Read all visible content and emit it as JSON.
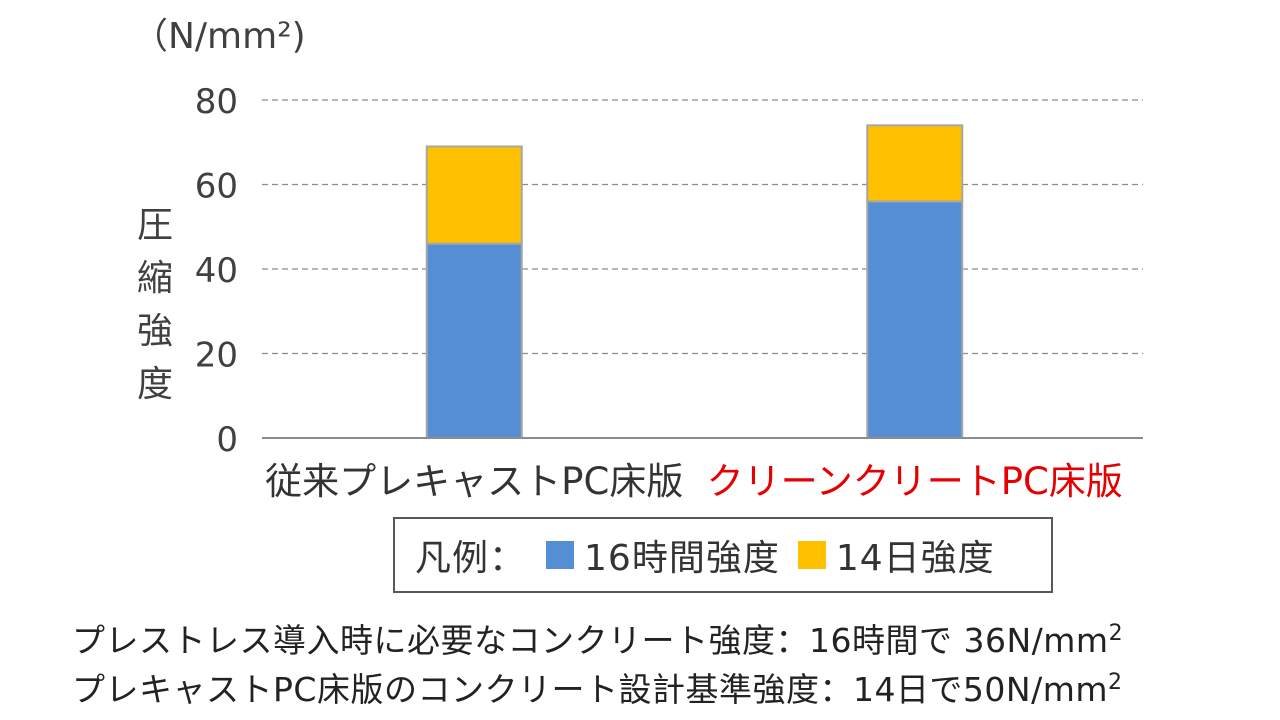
{
  "chart_data": {
    "type": "bar",
    "stacked": true,
    "unit": "（N/mm²)",
    "ylabel": "圧縮強度",
    "ylim": [
      0,
      80
    ],
    "yticks": [
      0,
      20,
      40,
      60,
      80
    ],
    "grid": true,
    "categories": [
      "従来プレキャストPC床版",
      "クリーンクリートPC床版"
    ],
    "category_colors": [
      "#333333",
      "#e60000"
    ],
    "series": [
      {
        "name": "16時間強度",
        "color": "#558ed5",
        "values": [
          46,
          56
        ]
      },
      {
        "name": "14日強度",
        "color": "#ffc000",
        "values": [
          23,
          18
        ]
      }
    ]
  },
  "legend": {
    "title": "凡例：",
    "items": [
      {
        "label": "16時間強度",
        "color": "#558ed5"
      },
      {
        "label": "14日強度",
        "color": "#ffc000"
      }
    ]
  },
  "notes": {
    "line1_text": "プレストレス導入時に必要なコンクリート強度：16時間で 36N/mm",
    "line1_sup": "2",
    "line2_text": "プレキャストPC床版のコンクリート設計基準強度：14日で50N/mm",
    "line2_sup": "2"
  }
}
